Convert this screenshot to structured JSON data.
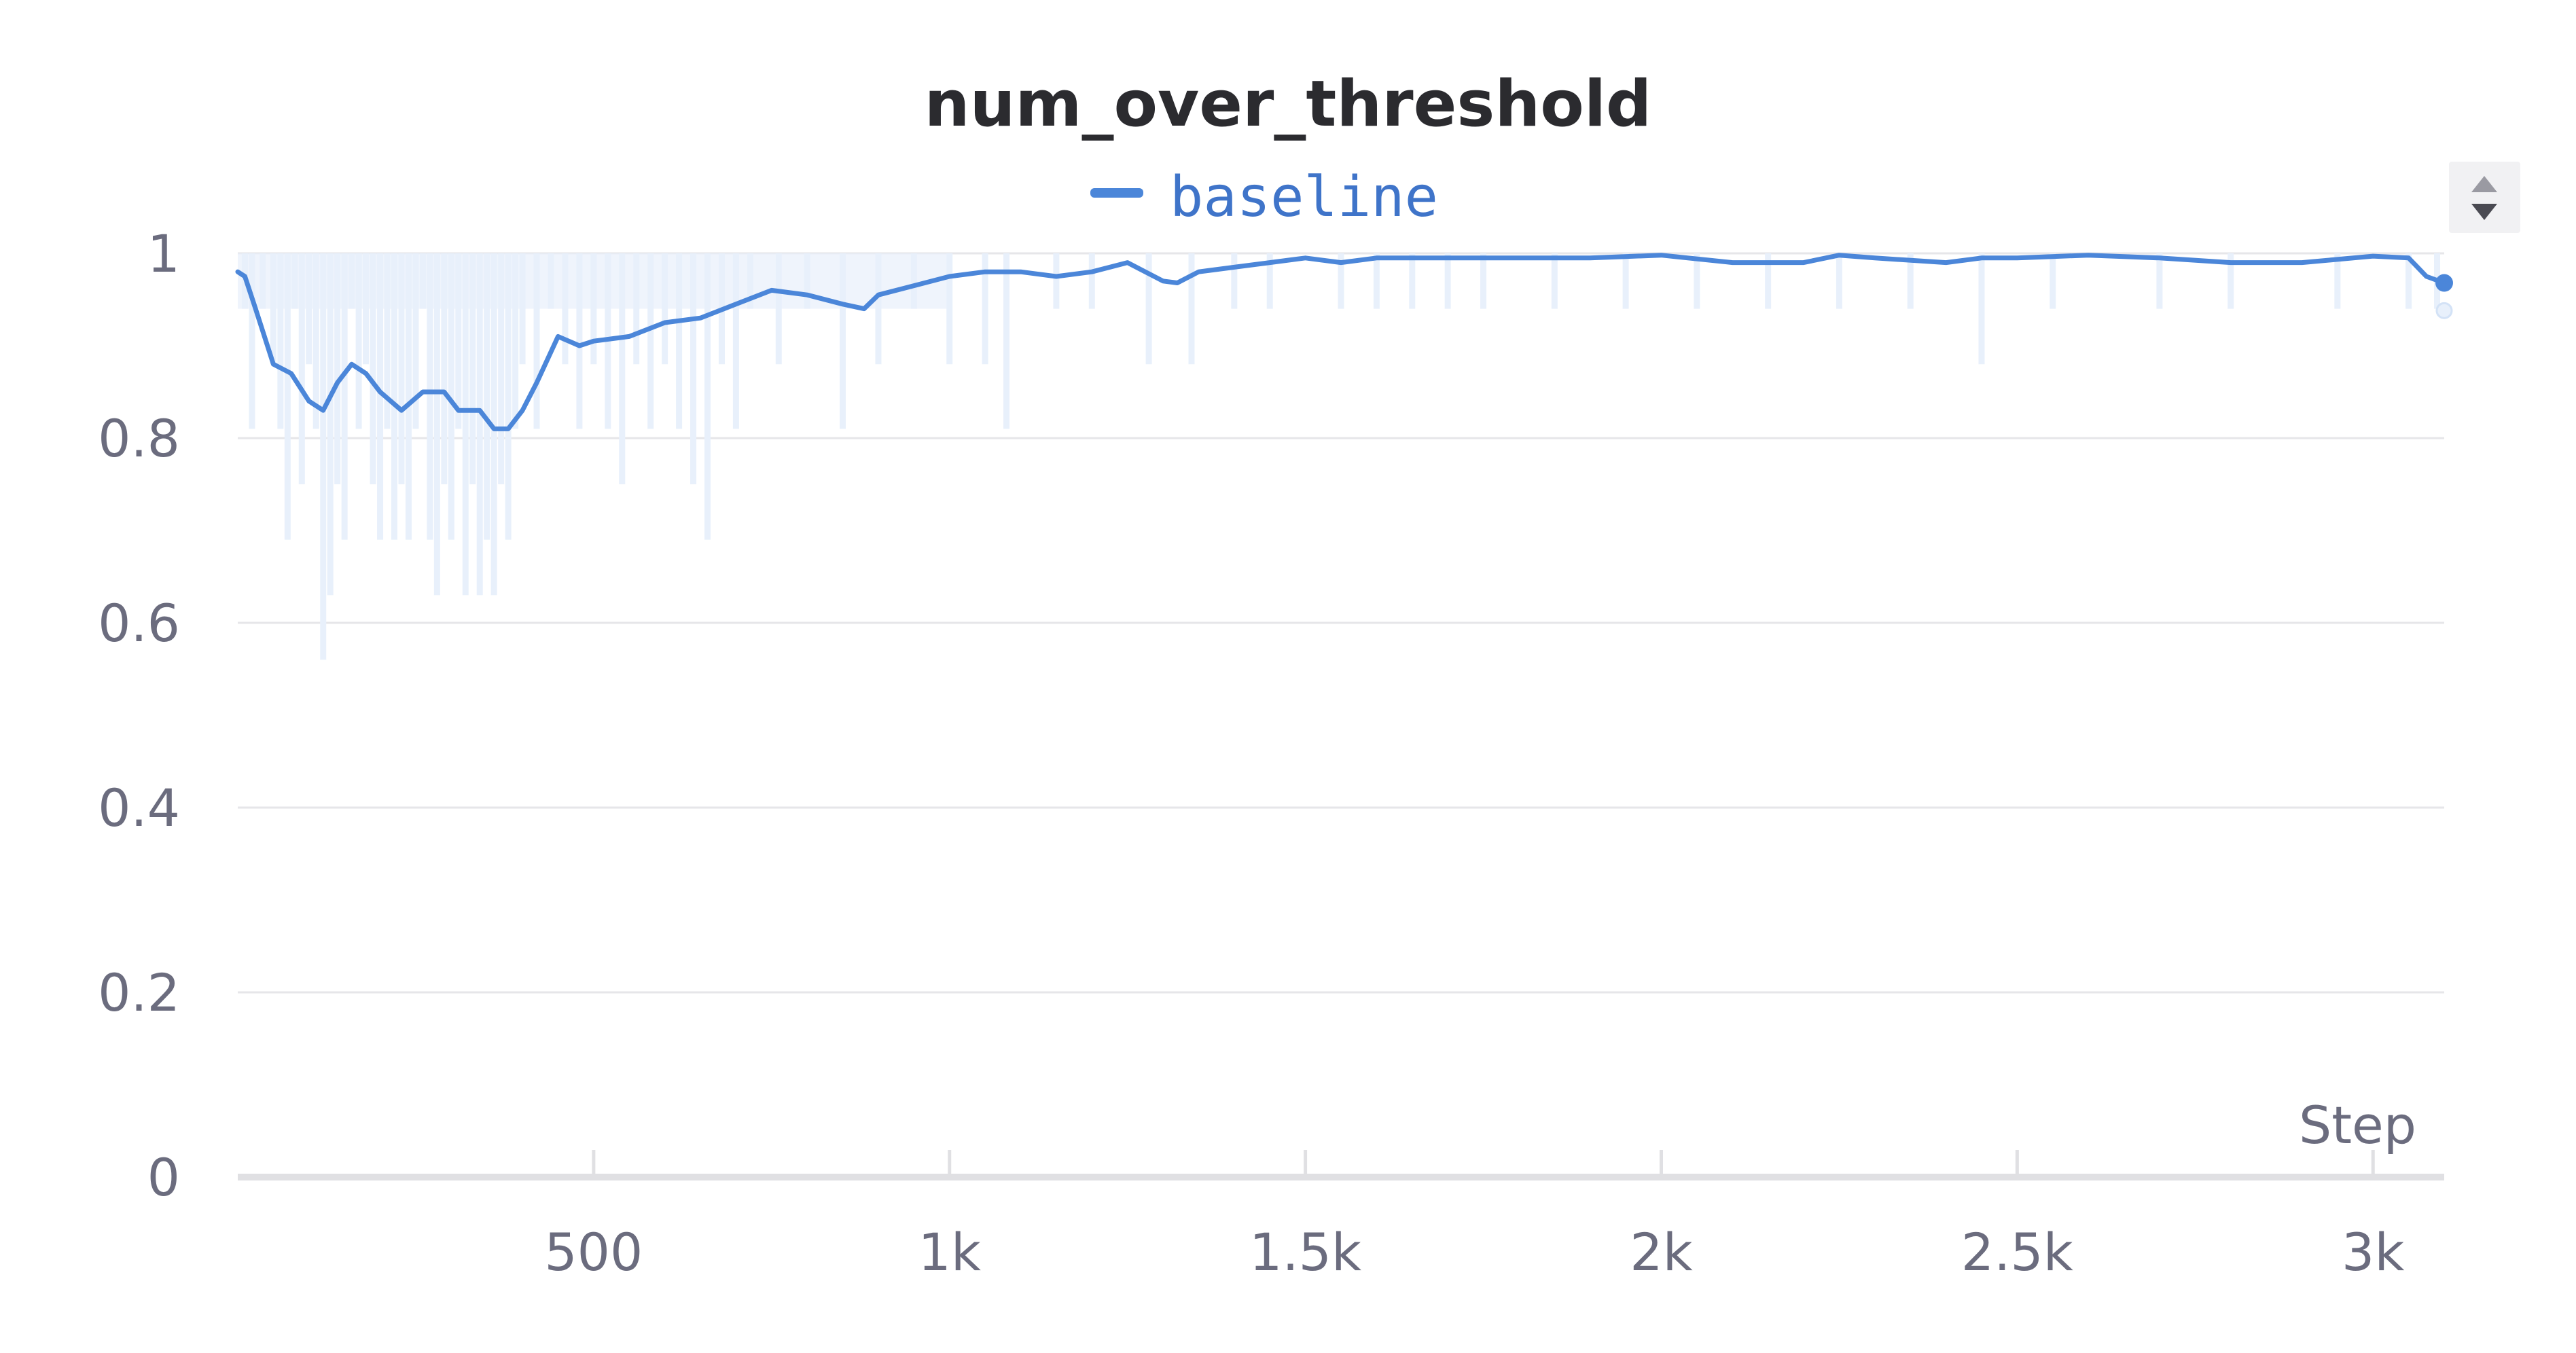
{
  "colors": {
    "line": "#4b86d9",
    "raw": "#e8f0fb",
    "grid": "#e6e6e9",
    "axis": "#e0e0e3",
    "text": "#2b2b2f",
    "tick_text": "#6b6c7e",
    "legend_text": "#3f74c9",
    "scroll_bg": "#f1f1f3",
    "scroll_arrow": "#9a9aa2",
    "scroll_arrow_active": "#4a4a52"
  },
  "legend_icon": "line-swatch",
  "scroll_icons": [
    "up-arrow-icon",
    "down-arrow-icon"
  ],
  "chart_data": {
    "type": "line",
    "title": "num_over_threshold",
    "xlabel": "Step",
    "ylabel": "",
    "xlim": [
      0,
      3100
    ],
    "ylim": [
      0,
      1
    ],
    "grid": true,
    "legend": "top-center",
    "x_ticks": [
      500,
      1000,
      1500,
      2000,
      2500,
      3000
    ],
    "x_tick_labels": [
      "500",
      "1k",
      "1.5k",
      "2k",
      "2.5k",
      "3k"
    ],
    "y_ticks": [
      0,
      0.2,
      0.4,
      0.6,
      0.8,
      1
    ],
    "y_tick_labels": [
      "0",
      "0.2",
      "0.4",
      "0.6",
      "0.8",
      "1"
    ],
    "series": [
      {
        "name": "baseline",
        "smoothed": {
          "x": [
            0,
            10,
            25,
            50,
            75,
            100,
            120,
            140,
            160,
            180,
            200,
            230,
            260,
            290,
            310,
            340,
            360,
            380,
            400,
            420,
            450,
            480,
            500,
            550,
            600,
            650,
            700,
            750,
            800,
            850,
            880,
            900,
            950,
            1000,
            1050,
            1100,
            1150,
            1200,
            1250,
            1300,
            1320,
            1350,
            1400,
            1450,
            1500,
            1550,
            1600,
            1700,
            1800,
            1900,
            2000,
            2100,
            2200,
            2250,
            2300,
            2400,
            2450,
            2500,
            2600,
            2700,
            2800,
            2900,
            3000,
            3050,
            3075,
            3100
          ],
          "y": [
            0.98,
            0.975,
            0.94,
            0.88,
            0.87,
            0.84,
            0.83,
            0.86,
            0.88,
            0.87,
            0.85,
            0.83,
            0.85,
            0.85,
            0.83,
            0.83,
            0.81,
            0.81,
            0.83,
            0.86,
            0.91,
            0.9,
            0.905,
            0.91,
            0.925,
            0.93,
            0.945,
            0.96,
            0.955,
            0.945,
            0.94,
            0.955,
            0.965,
            0.975,
            0.98,
            0.98,
            0.975,
            0.98,
            0.99,
            0.97,
            0.968,
            0.98,
            0.985,
            0.99,
            0.995,
            0.99,
            0.995,
            0.995,
            0.995,
            0.995,
            0.998,
            0.99,
            0.99,
            0.998,
            0.995,
            0.99,
            0.995,
            0.995,
            0.998,
            0.995,
            0.99,
            0.99,
            0.997,
            0.995,
            0.975,
            0.968
          ]
        },
        "raw_dips": [
          {
            "x": 10,
            "y": 0.94
          },
          {
            "x": 20,
            "y": 0.81
          },
          {
            "x": 35,
            "y": 0.94
          },
          {
            "x": 50,
            "y": 0.88
          },
          {
            "x": 60,
            "y": 0.81
          },
          {
            "x": 70,
            "y": 0.69
          },
          {
            "x": 80,
            "y": 0.94
          },
          {
            "x": 90,
            "y": 0.75
          },
          {
            "x": 100,
            "y": 0.88
          },
          {
            "x": 110,
            "y": 0.81
          },
          {
            "x": 120,
            "y": 0.56
          },
          {
            "x": 130,
            "y": 0.63
          },
          {
            "x": 140,
            "y": 0.75
          },
          {
            "x": 150,
            "y": 0.69
          },
          {
            "x": 160,
            "y": 0.94
          },
          {
            "x": 170,
            "y": 0.81
          },
          {
            "x": 180,
            "y": 0.88
          },
          {
            "x": 190,
            "y": 0.75
          },
          {
            "x": 200,
            "y": 0.69
          },
          {
            "x": 210,
            "y": 0.81
          },
          {
            "x": 220,
            "y": 0.69
          },
          {
            "x": 230,
            "y": 0.75
          },
          {
            "x": 240,
            "y": 0.69
          },
          {
            "x": 250,
            "y": 0.81
          },
          {
            "x": 260,
            "y": 0.94
          },
          {
            "x": 270,
            "y": 0.69
          },
          {
            "x": 280,
            "y": 0.63
          },
          {
            "x": 290,
            "y": 0.75
          },
          {
            "x": 300,
            "y": 0.69
          },
          {
            "x": 310,
            "y": 0.81
          },
          {
            "x": 320,
            "y": 0.63
          },
          {
            "x": 330,
            "y": 0.75
          },
          {
            "x": 340,
            "y": 0.63
          },
          {
            "x": 350,
            "y": 0.69
          },
          {
            "x": 360,
            "y": 0.63
          },
          {
            "x": 370,
            "y": 0.75
          },
          {
            "x": 380,
            "y": 0.69
          },
          {
            "x": 390,
            "y": 0.81
          },
          {
            "x": 400,
            "y": 0.88
          },
          {
            "x": 420,
            "y": 0.81
          },
          {
            "x": 440,
            "y": 0.94
          },
          {
            "x": 460,
            "y": 0.88
          },
          {
            "x": 480,
            "y": 0.81
          },
          {
            "x": 500,
            "y": 0.88
          },
          {
            "x": 520,
            "y": 0.81
          },
          {
            "x": 540,
            "y": 0.75
          },
          {
            "x": 560,
            "y": 0.88
          },
          {
            "x": 580,
            "y": 0.81
          },
          {
            "x": 600,
            "y": 0.88
          },
          {
            "x": 620,
            "y": 0.81
          },
          {
            "x": 640,
            "y": 0.75
          },
          {
            "x": 660,
            "y": 0.69
          },
          {
            "x": 680,
            "y": 0.88
          },
          {
            "x": 700,
            "y": 0.81
          },
          {
            "x": 720,
            "y": 0.94
          },
          {
            "x": 760,
            "y": 0.88
          },
          {
            "x": 800,
            "y": 0.94
          },
          {
            "x": 850,
            "y": 0.81
          },
          {
            "x": 900,
            "y": 0.88
          },
          {
            "x": 950,
            "y": 0.94
          },
          {
            "x": 1000,
            "y": 0.88
          },
          {
            "x": 1050,
            "y": 0.88
          },
          {
            "x": 1080,
            "y": 0.81
          },
          {
            "x": 1150,
            "y": 0.94
          },
          {
            "x": 1200,
            "y": 0.94
          },
          {
            "x": 1280,
            "y": 0.88
          },
          {
            "x": 1340,
            "y": 0.88
          },
          {
            "x": 1400,
            "y": 0.94
          },
          {
            "x": 1450,
            "y": 0.94
          },
          {
            "x": 1550,
            "y": 0.94
          },
          {
            "x": 1600,
            "y": 0.94
          },
          {
            "x": 1650,
            "y": 0.94
          },
          {
            "x": 1700,
            "y": 0.94
          },
          {
            "x": 1750,
            "y": 0.94
          },
          {
            "x": 1850,
            "y": 0.94
          },
          {
            "x": 1950,
            "y": 0.94
          },
          {
            "x": 2050,
            "y": 0.94
          },
          {
            "x": 2150,
            "y": 0.94
          },
          {
            "x": 2250,
            "y": 0.94
          },
          {
            "x": 2350,
            "y": 0.94
          },
          {
            "x": 2450,
            "y": 0.88
          },
          {
            "x": 2550,
            "y": 0.94
          },
          {
            "x": 2700,
            "y": 0.94
          },
          {
            "x": 2800,
            "y": 0.94
          },
          {
            "x": 2950,
            "y": 0.94
          },
          {
            "x": 3050,
            "y": 0.94
          },
          {
            "x": 3090,
            "y": 0.94
          }
        ],
        "last_value": 0.968,
        "last_raw_value": 0.938
      }
    ]
  }
}
